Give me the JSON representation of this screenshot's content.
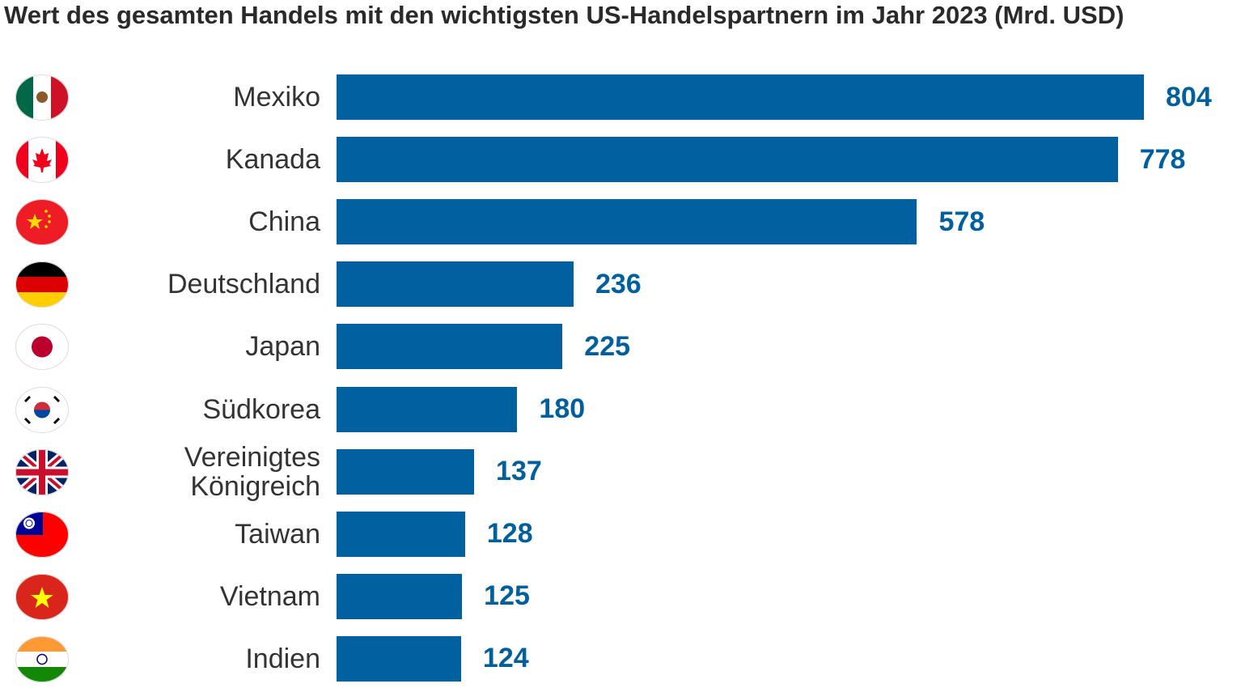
{
  "chart_data": {
    "type": "bar",
    "orientation": "horizontal",
    "title": "Wert des gesamten Handels mit den wichtigsten US-Handelspartnern im Jahr 2023 (Mrd. USD)",
    "categories": [
      "Mexiko",
      "Kanada",
      "China",
      "Deutschland",
      "Japan",
      "Südkorea",
      "Vereinigtes\nKönigreich",
      "Taiwan",
      "Vietnam",
      "Indien"
    ],
    "values": [
      804,
      778,
      578,
      236,
      225,
      180,
      137,
      128,
      125,
      124
    ],
    "flag_icons": [
      "mexico-flag",
      "canada-flag",
      "china-flag",
      "germany-flag",
      "japan-flag",
      "south-korea-flag",
      "uk-flag",
      "taiwan-flag",
      "vietnam-flag",
      "india-flag"
    ],
    "xlim": [
      0,
      804
    ],
    "xlabel": "",
    "ylabel": "",
    "grid": false,
    "legend": "none",
    "colors": {
      "bar": "#0060a0",
      "value_label": "#00609e",
      "title": "#2a2a2a"
    }
  }
}
